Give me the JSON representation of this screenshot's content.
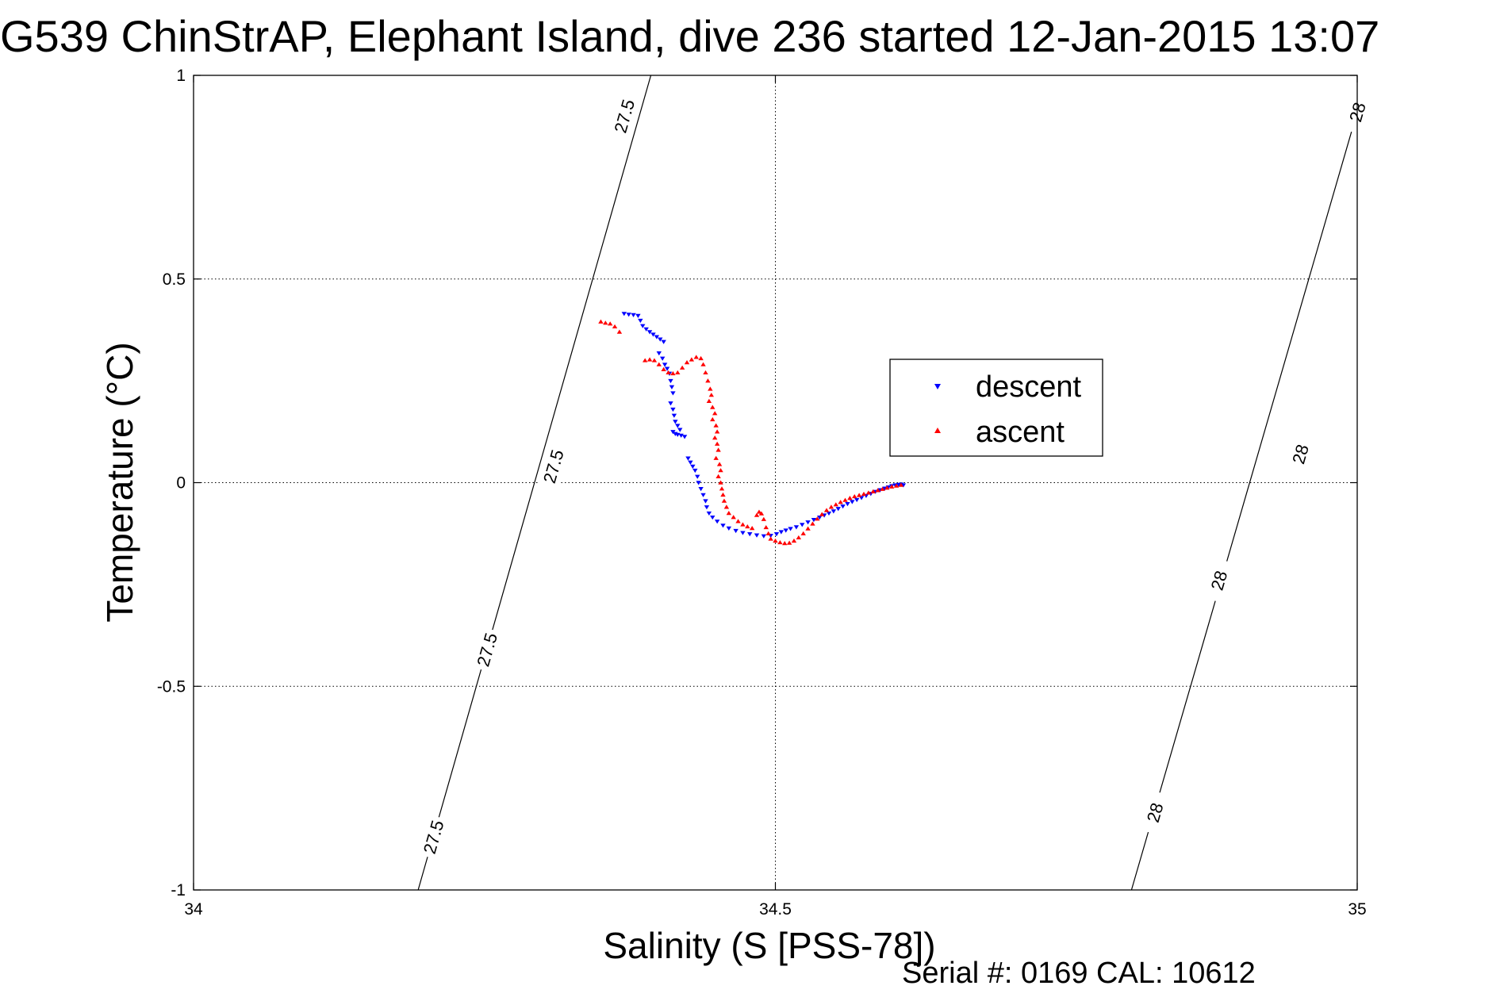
{
  "chart_data": {
    "type": "scatter",
    "title": "G539 ChinStrAP, Elephant Island, dive 236 started 12-Jan-2015 13:07",
    "xlabel": "Salinity (S [PSS-78])",
    "ylabel": "Temperature (°C)",
    "xlim": [
      34,
      35
    ],
    "ylim": [
      -1,
      1
    ],
    "x_ticks": [
      {
        "value": 34,
        "label": "34"
      },
      {
        "value": 34.5,
        "label": "34.5"
      },
      {
        "value": 35,
        "label": "35"
      }
    ],
    "y_ticks": [
      {
        "value": 1,
        "label": "1"
      },
      {
        "value": 0.5,
        "label": "0.5"
      },
      {
        "value": 0,
        "label": "0"
      },
      {
        "value": -0.5,
        "label": "-0.5"
      },
      {
        "value": -1,
        "label": "-1"
      }
    ],
    "grid": true,
    "legend_position": "upper-right",
    "series": [
      {
        "name": "descent",
        "color": "#0000ff",
        "marker": "triangle-down",
        "points": [
          [
            34.37,
            0.415
          ],
          [
            34.374,
            0.413
          ],
          [
            34.378,
            0.412
          ],
          [
            34.382,
            0.41
          ],
          [
            34.384,
            0.398
          ],
          [
            34.386,
            0.385
          ],
          [
            34.389,
            0.377
          ],
          [
            34.392,
            0.37
          ],
          [
            34.395,
            0.364
          ],
          [
            34.398,
            0.358
          ],
          [
            34.401,
            0.352
          ],
          [
            34.404,
            0.346
          ],
          [
            34.4,
            0.318
          ],
          [
            34.403,
            0.305
          ],
          [
            34.405,
            0.29
          ],
          [
            34.407,
            0.28
          ],
          [
            34.409,
            0.268
          ],
          [
            34.41,
            0.25
          ],
          [
            34.411,
            0.235
          ],
          [
            34.412,
            0.22
          ],
          [
            34.41,
            0.195
          ],
          [
            34.412,
            0.18
          ],
          [
            34.413,
            0.165
          ],
          [
            34.414,
            0.15
          ],
          [
            34.416,
            0.14
          ],
          [
            34.418,
            0.13
          ],
          [
            34.412,
            0.125
          ],
          [
            34.414,
            0.12
          ],
          [
            34.416,
            0.118
          ],
          [
            34.419,
            0.116
          ],
          [
            34.422,
            0.113
          ],
          [
            34.425,
            0.06
          ],
          [
            34.427,
            0.05
          ],
          [
            34.429,
            0.04
          ],
          [
            34.431,
            0.03
          ],
          [
            34.433,
            0.015
          ],
          [
            34.434,
            0.0
          ],
          [
            34.436,
            -0.015
          ],
          [
            34.438,
            -0.03
          ],
          [
            34.44,
            -0.045
          ],
          [
            34.441,
            -0.06
          ],
          [
            34.443,
            -0.075
          ],
          [
            34.446,
            -0.085
          ],
          [
            34.45,
            -0.095
          ],
          [
            34.455,
            -0.105
          ],
          [
            34.46,
            -0.112
          ],
          [
            34.466,
            -0.118
          ],
          [
            34.472,
            -0.123
          ],
          [
            34.478,
            -0.126
          ],
          [
            34.484,
            -0.129
          ],
          [
            34.49,
            -0.131
          ],
          [
            34.496,
            -0.13
          ],
          [
            34.501,
            -0.126
          ],
          [
            34.505,
            -0.121
          ],
          [
            34.509,
            -0.117
          ],
          [
            34.513,
            -0.113
          ],
          [
            34.518,
            -0.109
          ],
          [
            34.523,
            -0.103
          ],
          [
            34.528,
            -0.097
          ],
          [
            34.533,
            -0.091
          ],
          [
            34.538,
            -0.085
          ],
          [
            34.542,
            -0.08
          ],
          [
            34.546,
            -0.075
          ],
          [
            34.55,
            -0.07
          ],
          [
            34.554,
            -0.064
          ],
          [
            34.558,
            -0.058
          ],
          [
            34.562,
            -0.052
          ],
          [
            34.566,
            -0.047
          ],
          [
            34.57,
            -0.042
          ],
          [
            34.574,
            -0.037
          ],
          [
            34.578,
            -0.032
          ],
          [
            34.582,
            -0.027
          ],
          [
            34.586,
            -0.022
          ],
          [
            34.59,
            -0.018
          ],
          [
            34.594,
            -0.014
          ],
          [
            34.597,
            -0.011
          ],
          [
            34.6,
            -0.008
          ],
          [
            34.603,
            -0.006
          ],
          [
            34.606,
            -0.005
          ],
          [
            34.608,
            -0.004
          ],
          [
            34.61,
            -0.006
          ]
        ]
      },
      {
        "name": "ascent",
        "color": "#ff0000",
        "marker": "triangle-up",
        "points": [
          [
            34.35,
            0.395
          ],
          [
            34.354,
            0.392
          ],
          [
            34.358,
            0.39
          ],
          [
            34.362,
            0.383
          ],
          [
            34.366,
            0.37
          ],
          [
            34.388,
            0.3
          ],
          [
            34.392,
            0.302
          ],
          [
            34.396,
            0.3
          ],
          [
            34.4,
            0.29
          ],
          [
            34.404,
            0.278
          ],
          [
            34.408,
            0.27
          ],
          [
            34.412,
            0.268
          ],
          [
            34.416,
            0.27
          ],
          [
            34.42,
            0.282
          ],
          [
            34.424,
            0.295
          ],
          [
            34.428,
            0.302
          ],
          [
            34.432,
            0.308
          ],
          [
            34.436,
            0.305
          ],
          [
            34.438,
            0.29
          ],
          [
            34.44,
            0.27
          ],
          [
            34.442,
            0.25
          ],
          [
            34.444,
            0.23
          ],
          [
            34.445,
            0.215
          ],
          [
            34.443,
            0.2
          ],
          [
            34.446,
            0.185
          ],
          [
            34.448,
            0.17
          ],
          [
            34.446,
            0.155
          ],
          [
            34.449,
            0.14
          ],
          [
            34.45,
            0.125
          ],
          [
            34.448,
            0.11
          ],
          [
            34.45,
            0.095
          ],
          [
            34.451,
            0.08
          ],
          [
            34.449,
            0.06
          ],
          [
            34.452,
            0.045
          ],
          [
            34.453,
            0.03
          ],
          [
            34.451,
            0.015
          ],
          [
            34.453,
            0.0
          ],
          [
            34.454,
            -0.015
          ],
          [
            34.455,
            -0.03
          ],
          [
            34.456,
            -0.045
          ],
          [
            34.458,
            -0.06
          ],
          [
            34.46,
            -0.075
          ],
          [
            34.464,
            -0.085
          ],
          [
            34.468,
            -0.095
          ],
          [
            34.472,
            -0.103
          ],
          [
            34.476,
            -0.108
          ],
          [
            34.48,
            -0.112
          ],
          [
            34.484,
            -0.08
          ],
          [
            34.486,
            -0.072
          ],
          [
            34.488,
            -0.076
          ],
          [
            34.49,
            -0.09
          ],
          [
            34.492,
            -0.11
          ],
          [
            34.494,
            -0.125
          ],
          [
            34.496,
            -0.138
          ],
          [
            34.5,
            -0.143
          ],
          [
            34.504,
            -0.147
          ],
          [
            34.508,
            -0.149
          ],
          [
            34.512,
            -0.148
          ],
          [
            34.516,
            -0.143
          ],
          [
            34.52,
            -0.135
          ],
          [
            34.524,
            -0.125
          ],
          [
            34.528,
            -0.113
          ],
          [
            34.532,
            -0.101
          ],
          [
            34.536,
            -0.089
          ],
          [
            34.54,
            -0.078
          ],
          [
            34.544,
            -0.068
          ],
          [
            34.548,
            -0.06
          ],
          [
            34.552,
            -0.054
          ],
          [
            34.556,
            -0.048
          ],
          [
            34.56,
            -0.043
          ],
          [
            34.564,
            -0.038
          ],
          [
            34.568,
            -0.034
          ],
          [
            34.572,
            -0.031
          ],
          [
            34.576,
            -0.028
          ],
          [
            34.58,
            -0.025
          ],
          [
            34.584,
            -0.022
          ],
          [
            34.588,
            -0.019
          ],
          [
            34.592,
            -0.016
          ],
          [
            34.596,
            -0.013
          ],
          [
            34.6,
            -0.01
          ],
          [
            34.604,
            -0.008
          ],
          [
            34.608,
            -0.006
          ]
        ]
      }
    ],
    "density_contours": [
      {
        "label": "27.5",
        "points": [
          [
            34.193,
            -1
          ],
          [
            34.393,
            1
          ]
        ],
        "label_positions": [
          [
            34.206,
            -0.87
          ],
          [
            34.252,
            -0.41
          ],
          [
            34.309,
            0.04
          ],
          [
            34.37,
            0.9
          ]
        ]
      },
      {
        "label": "28",
        "points": [
          [
            34.806,
            -1
          ],
          [
            35.0,
            0.91
          ]
        ],
        "label_positions": [
          [
            34.826,
            -0.81
          ],
          [
            34.881,
            -0.24
          ],
          [
            34.951,
            0.07
          ],
          [
            35.0,
            0.91
          ]
        ]
      }
    ],
    "annotations": [
      {
        "text": "Serial #: 0169 CAL: 10612",
        "position": "bottom-right"
      }
    ]
  }
}
